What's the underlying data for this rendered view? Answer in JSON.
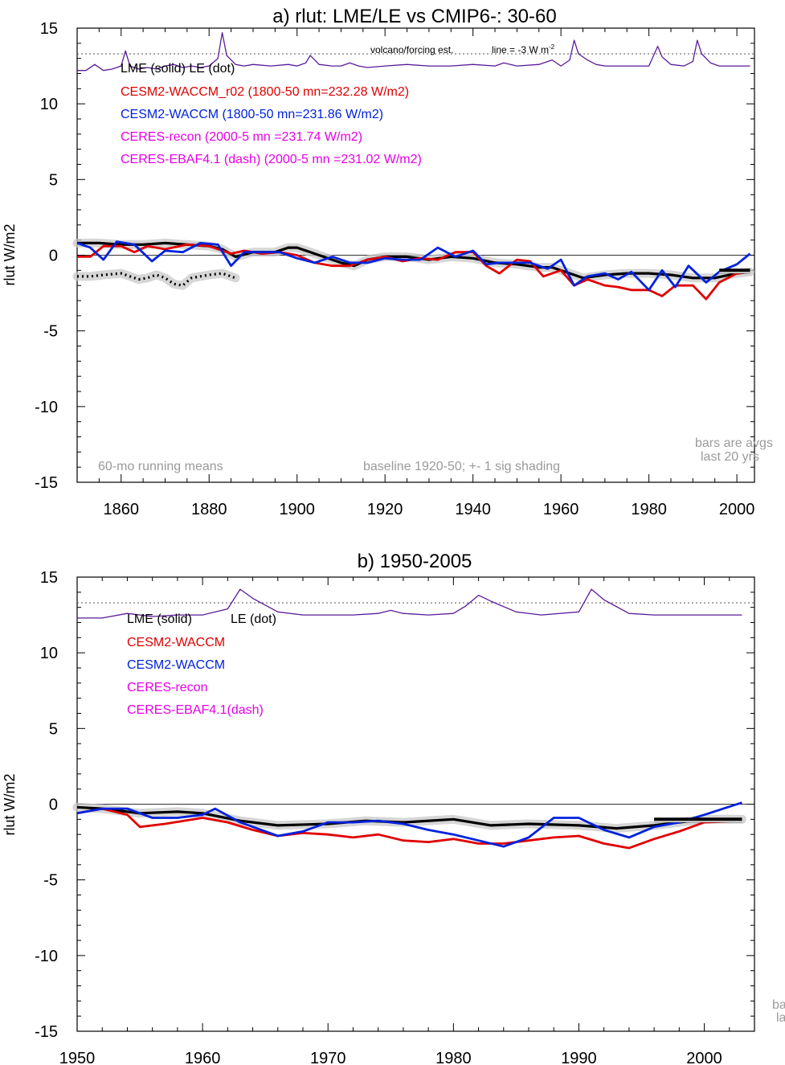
{
  "colors": {
    "lme": "#000000",
    "le_shade": "#c8c8c8",
    "red": "#e00000",
    "blue": "#0022dd",
    "magenta": "#e600e6",
    "volcano": "#5a1a9a",
    "note": "#9a9a9a",
    "ref": "#555555"
  },
  "chart_data": [
    {
      "type": "line",
      "title": "a) rlut: LME/LE vs CMIP6-: 30-60",
      "ylabel": "rlut W/m2",
      "xlim": [
        1850,
        2004
      ],
      "ylim": [
        -15,
        15
      ],
      "xticks": [
        1860,
        1880,
        1900,
        1920,
        1940,
        1960,
        1980,
        2000
      ],
      "yticks": [
        15,
        10,
        5,
        0,
        -5,
        -10,
        -15
      ],
      "grid": false,
      "volcano_label": "volcano/forcing est.",
      "scale_label": "line = -3 W m",
      "scale_sup": "-2",
      "reference_line_y": 13.3,
      "legend": [
        {
          "text": "LME (solid)   LE (dot)",
          "color": "#000000"
        },
        {
          "text": "CESM2-WACCM_r02 (1800-50 mn=232.28 W/m2)",
          "color": "#e00000"
        },
        {
          "text": "CESM2-WACCM (1800-50 mn=231.86 W/m2)",
          "color": "#0022dd"
        },
        {
          "text": "CERES-recon (2000-5 mn =231.74 W/m2)",
          "color": "#e600e6"
        },
        {
          "text": "CERES-EBAF4.1 (dash) (2000-5 mn =231.02 W/m2)",
          "color": "#e600e6"
        }
      ],
      "notes": {
        "left": "60-mo running means",
        "center": "baseline 1920-50; +- 1 sig shading",
        "right1": "bars are avgs",
        "right2": "last 20 yrs"
      },
      "series": [
        {
          "name": "LME (solid)",
          "style": "solid-black",
          "x": [
            1850,
            1855,
            1860,
            1865,
            1870,
            1875,
            1880,
            1883,
            1886,
            1890,
            1895,
            1898,
            1900,
            1905,
            1910,
            1913,
            1916,
            1920,
            1925,
            1930,
            1935,
            1940,
            1945,
            1950,
            1955,
            1958,
            1962,
            1965,
            1970,
            1975,
            1980,
            1985,
            1990,
            1995,
            2000,
            2003
          ],
          "y": [
            0.8,
            0.8,
            0.7,
            0.7,
            0.8,
            0.7,
            0.6,
            0.4,
            -0.1,
            0.2,
            0.2,
            0.5,
            0.5,
            0.0,
            -0.5,
            -0.7,
            -0.3,
            -0.1,
            -0.1,
            -0.3,
            -0.1,
            -0.2,
            -0.5,
            -0.6,
            -0.8,
            -0.8,
            -1.2,
            -1.5,
            -1.3,
            -1.2,
            -1.2,
            -1.3,
            -1.5,
            -1.5,
            -1.2,
            -1.1
          ]
        },
        {
          "name": "CESM2-WACCM_r02",
          "style": "red",
          "x": [
            1850,
            1853,
            1856,
            1860,
            1863,
            1866,
            1870,
            1875,
            1880,
            1885,
            1888,
            1892,
            1896,
            1900,
            1904,
            1908,
            1912,
            1916,
            1920,
            1924,
            1928,
            1932,
            1936,
            1940,
            1943,
            1946,
            1950,
            1953,
            1956,
            1960,
            1963,
            1966,
            1970,
            1973,
            1976,
            1980,
            1983,
            1986,
            1990,
            1993,
            1996,
            2000,
            2003
          ],
          "y": [
            -0.1,
            -0.1,
            0.6,
            0.6,
            0.2,
            0.6,
            0.4,
            0.7,
            0.6,
            0.1,
            0.3,
            0.1,
            0.2,
            0.0,
            -0.5,
            -0.7,
            -0.7,
            -0.3,
            -0.1,
            -0.4,
            -0.2,
            -0.3,
            0.2,
            0.2,
            -0.7,
            -1.2,
            -0.3,
            -0.4,
            -1.4,
            -1.0,
            -2.0,
            -1.6,
            -2.0,
            -2.1,
            -2.3,
            -2.3,
            -2.7,
            -2.0,
            -2.0,
            -2.9,
            -1.8,
            -1.2,
            -1.1
          ]
        },
        {
          "name": "CESM2-WACCM",
          "style": "blue",
          "x": [
            1850,
            1853,
            1856,
            1859,
            1863,
            1867,
            1870,
            1874,
            1878,
            1882,
            1885,
            1888,
            1892,
            1896,
            1900,
            1904,
            1908,
            1912,
            1916,
            1920,
            1924,
            1928,
            1932,
            1936,
            1940,
            1943,
            1946,
            1950,
            1953,
            1957,
            1960,
            1963,
            1966,
            1970,
            1973,
            1976,
            1980,
            1983,
            1986,
            1989,
            1993,
            1996,
            2000,
            2003
          ],
          "y": [
            0.8,
            0.5,
            -0.3,
            0.9,
            0.7,
            -0.4,
            0.3,
            0.2,
            0.8,
            0.7,
            -0.7,
            0.2,
            0.2,
            0.2,
            -0.2,
            -0.5,
            -0.1,
            -0.5,
            -0.5,
            -0.2,
            -0.3,
            -0.3,
            0.5,
            -0.1,
            0.3,
            -0.6,
            -0.5,
            -0.5,
            -0.5,
            -0.9,
            -0.3,
            -2.0,
            -1.4,
            -1.2,
            -1.6,
            -1.1,
            -2.3,
            -1.0,
            -2.1,
            -0.7,
            -1.8,
            -1.1,
            -0.6,
            0.1
          ]
        },
        {
          "name": "LE (dot)",
          "style": "dotted-black",
          "x": [
            1850,
            1853,
            1856,
            1860,
            1864,
            1866,
            1868,
            1870,
            1872,
            1874,
            1876,
            1880,
            1883,
            1886
          ],
          "y": [
            -1.4,
            -1.4,
            -1.3,
            -1.2,
            -1.6,
            -1.5,
            -1.3,
            -1.5,
            -1.9,
            -2.0,
            -1.5,
            -1.3,
            -1.2,
            -1.5
          ]
        },
        {
          "name": "volcano/forcing est.",
          "style": "volcano",
          "x": [
            1850,
            1852,
            1854,
            1856,
            1858,
            1860,
            1861,
            1862,
            1864,
            1866,
            1868,
            1870,
            1872,
            1874,
            1876,
            1878,
            1880,
            1882,
            1883,
            1884,
            1886,
            1888,
            1890,
            1894,
            1898,
            1900,
            1902,
            1903,
            1905,
            1908,
            1910,
            1912,
            1914,
            1916,
            1920,
            1925,
            1930,
            1935,
            1940,
            1945,
            1947,
            1950,
            1955,
            1958,
            1960,
            1962,
            1963,
            1964,
            1966,
            1968,
            1970,
            1975,
            1980,
            1982,
            1983,
            1985,
            1988,
            1990,
            1991,
            1992,
            1994,
            1996,
            2000,
            2003
          ],
          "y": [
            12.2,
            12.2,
            12.6,
            12.2,
            12.3,
            12.5,
            13.5,
            12.5,
            12.3,
            12.4,
            12.3,
            12.5,
            12.6,
            12.4,
            12.5,
            12.4,
            12.5,
            13.0,
            14.7,
            13.2,
            12.6,
            12.5,
            12.6,
            12.5,
            12.6,
            12.5,
            12.7,
            13.2,
            12.6,
            12.5,
            12.5,
            12.7,
            12.5,
            12.4,
            12.5,
            12.6,
            12.5,
            12.5,
            12.6,
            12.5,
            12.7,
            12.5,
            12.6,
            12.9,
            12.5,
            12.9,
            14.2,
            13.3,
            12.9,
            12.6,
            12.5,
            12.5,
            12.5,
            13.8,
            13.1,
            12.6,
            12.5,
            12.8,
            14.2,
            13.3,
            12.7,
            12.5,
            12.5,
            12.5
          ]
        }
      ]
    },
    {
      "type": "line",
      "title": "b) 1950-2005",
      "ylabel": "rlut W/m2",
      "xlim": [
        1950,
        2004
      ],
      "ylim": [
        -15,
        15
      ],
      "xticks": [
        1950,
        1960,
        1970,
        1980,
        1990,
        2000
      ],
      "yticks": [
        15,
        10,
        5,
        0,
        -5,
        -10,
        -15
      ],
      "grid": false,
      "reference_line_y": 13.3,
      "legend": [
        {
          "text": "LME (solid)",
          "color": "#000000"
        },
        {
          "text": "LE (dot)",
          "color": "#000000"
        },
        {
          "text": "CESM2-WACCM",
          "color": "#e00000"
        },
        {
          "text": "CESM2-WACCM",
          "color": "#0022dd"
        },
        {
          "text": "CERES-recon",
          "color": "#e600e6"
        },
        {
          "text": "CERES-EBAF4.1(dash)",
          "color": "#e600e6"
        }
      ],
      "notes": {
        "right1": "ba",
        "right2": "la"
      },
      "series": [
        {
          "name": "LME (solid)",
          "style": "solid-black",
          "x": [
            1950,
            1952,
            1955,
            1958,
            1960,
            1963,
            1966,
            1970,
            1973,
            1976,
            1980,
            1983,
            1986,
            1990,
            1993,
            1996,
            2000,
            2003
          ],
          "y": [
            -0.2,
            -0.3,
            -0.6,
            -0.5,
            -0.6,
            -1.1,
            -1.4,
            -1.3,
            -1.1,
            -1.2,
            -1.0,
            -1.4,
            -1.3,
            -1.4,
            -1.6,
            -1.4,
            -1.0,
            -1.0
          ]
        },
        {
          "name": "CESM2-WACCM",
          "style": "red",
          "x": [
            1950,
            1952,
            1954,
            1955,
            1957,
            1960,
            1962,
            1964,
            1966,
            1968,
            1970,
            1972,
            1974,
            1976,
            1978,
            1980,
            1982,
            1984,
            1986,
            1988,
            1990,
            1992,
            1994,
            1996,
            1998,
            2000,
            2003
          ],
          "y": [
            -0.6,
            -0.3,
            -0.7,
            -1.5,
            -1.3,
            -0.9,
            -1.2,
            -1.7,
            -2.1,
            -1.9,
            -2.0,
            -2.2,
            -2.0,
            -2.4,
            -2.5,
            -2.3,
            -2.6,
            -2.6,
            -2.4,
            -2.2,
            -2.1,
            -2.6,
            -2.9,
            -2.3,
            -1.8,
            -1.2,
            -1.1
          ]
        },
        {
          "name": "CESM2-WACCM",
          "style": "blue",
          "x": [
            1950,
            1952,
            1954,
            1956,
            1958,
            1960,
            1961,
            1963,
            1966,
            1968,
            1970,
            1972,
            1974,
            1976,
            1978,
            1980,
            1982,
            1984,
            1986,
            1988,
            1990,
            1992,
            1994,
            1996,
            1998,
            2000,
            2003
          ],
          "y": [
            -0.6,
            -0.3,
            -0.3,
            -0.9,
            -0.9,
            -0.7,
            -0.3,
            -1.2,
            -2.1,
            -1.8,
            -1.2,
            -1.2,
            -1.1,
            -1.3,
            -1.7,
            -2.0,
            -2.4,
            -2.8,
            -2.2,
            -0.9,
            -0.9,
            -1.7,
            -2.2,
            -1.5,
            -1.2,
            -0.7,
            0.1
          ]
        },
        {
          "name": "volcano/forcing est.",
          "style": "volcano",
          "x": [
            1950,
            1952,
            1954,
            1956,
            1958,
            1960,
            1962,
            1963,
            1964,
            1966,
            1968,
            1970,
            1972,
            1974,
            1975,
            1976,
            1978,
            1980,
            1981,
            1982,
            1983,
            1985,
            1987,
            1990,
            1991,
            1992,
            1994,
            1996,
            1998,
            2000,
            2003
          ],
          "y": [
            12.3,
            12.3,
            12.6,
            12.4,
            12.5,
            12.5,
            12.9,
            14.2,
            13.6,
            12.7,
            12.5,
            12.5,
            12.5,
            12.6,
            12.8,
            12.6,
            12.5,
            12.6,
            13.1,
            13.8,
            13.4,
            12.7,
            12.5,
            12.7,
            14.2,
            13.5,
            12.6,
            12.5,
            12.5,
            12.5,
            12.5
          ]
        }
      ]
    }
  ]
}
